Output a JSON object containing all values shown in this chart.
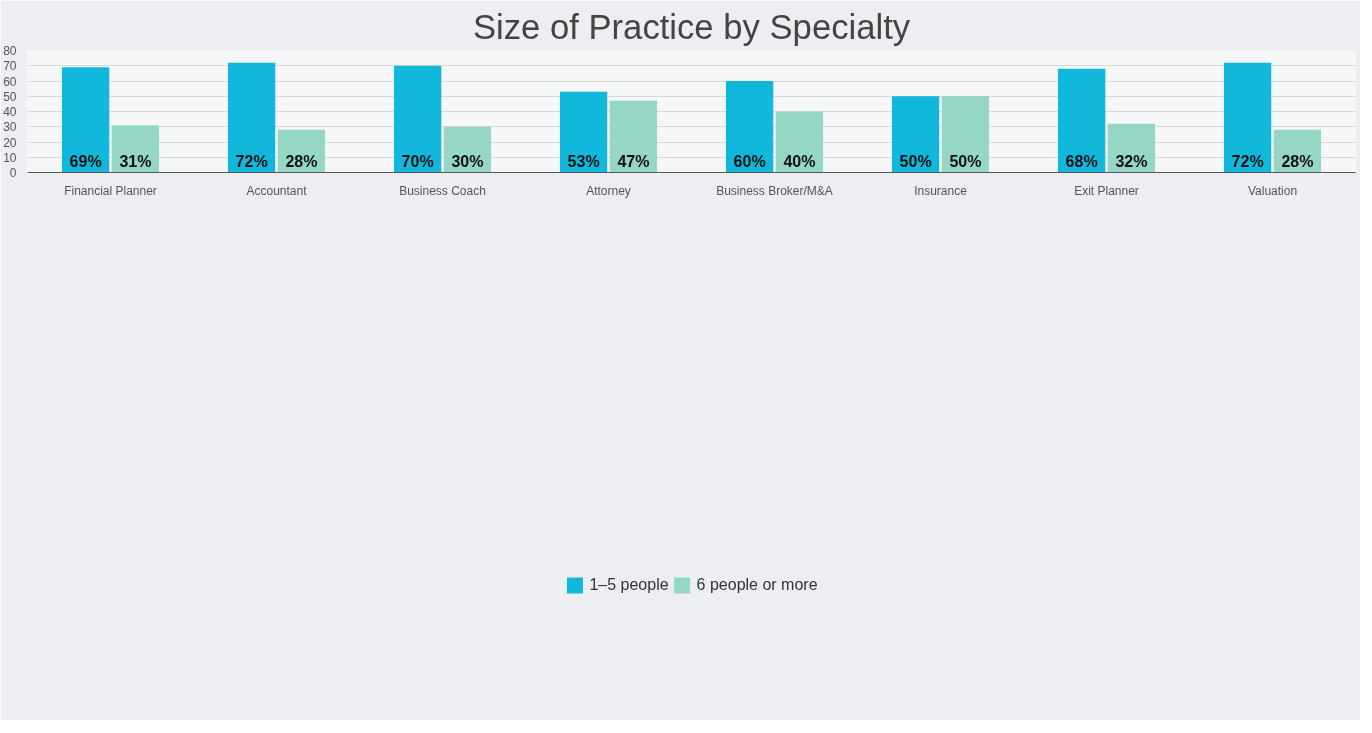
{
  "chart_data": {
    "type": "bar",
    "title": "Size of Practice by Specialty",
    "categories": [
      "Financial Planner",
      "Accountant",
      "Business Coach",
      "Attorney",
      "Business Broker/M&A",
      "Insurance",
      "Exit Planner",
      "Valuation"
    ],
    "series": [
      {
        "name": "1–5 people",
        "color": "#12b8db",
        "values": [
          69,
          72,
          70,
          53,
          60,
          50,
          68,
          72
        ],
        "value_labels": [
          "69%",
          "72%",
          "70%",
          "53%",
          "60%",
          "50%",
          "68%",
          "72%"
        ]
      },
      {
        "name": "6 people or more",
        "color": "#95d6c4",
        "values": [
          31,
          28,
          30,
          47,
          40,
          50,
          32,
          28
        ],
        "value_labels": [
          "31%",
          "28%",
          "30%",
          "47%",
          "40%",
          "50%",
          "32%",
          "28%"
        ]
      }
    ],
    "ylim": [
      0,
      80
    ],
    "yticks": [
      0,
      10,
      20,
      30,
      40,
      50,
      60,
      70,
      80
    ],
    "grid": "y",
    "legend": "bottom"
  }
}
